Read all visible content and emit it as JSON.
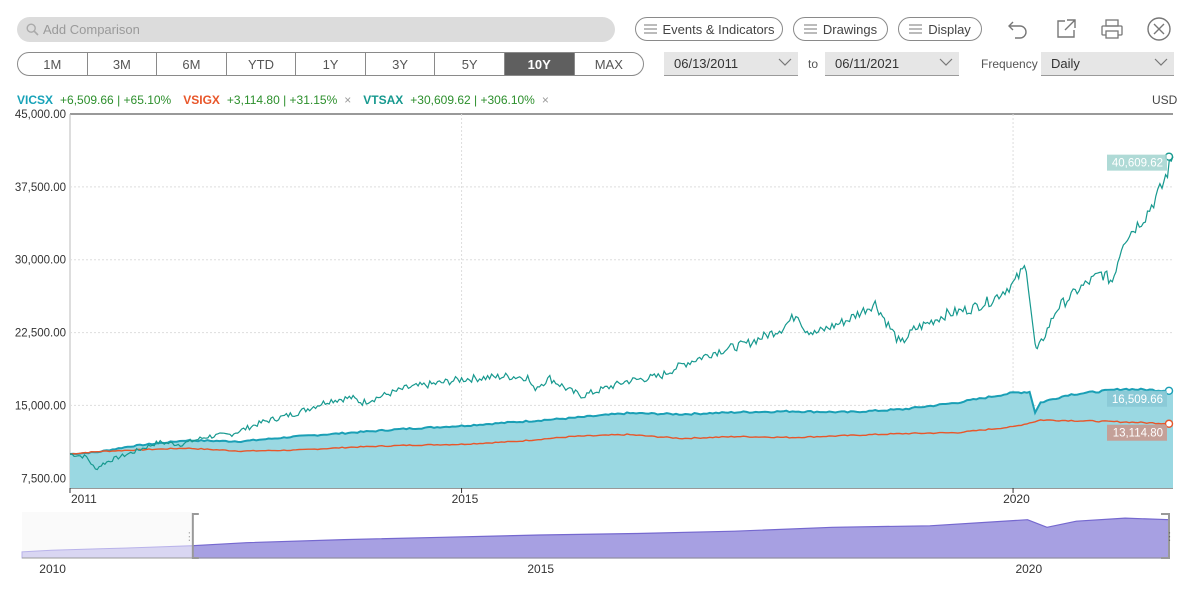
{
  "toolbar": {
    "search_placeholder": "Add Comparison",
    "events_label": "Events & Indicators",
    "drawings_label": "Drawings",
    "display_label": "Display"
  },
  "ranges": [
    "1M",
    "3M",
    "6M",
    "YTD",
    "1Y",
    "3Y",
    "5Y",
    "10Y",
    "MAX"
  ],
  "active_range": "10Y",
  "date_from": "06/13/2011",
  "date_to_label": "to",
  "date_to": "06/11/2021",
  "frequency_label": "Frequency",
  "frequency": "Daily",
  "currency": "USD",
  "legend": [
    {
      "ticker": "VICSX",
      "change": "+6,509.66 | +65.10%",
      "color": "#17a2b8"
    },
    {
      "ticker": "VSIGX",
      "change": "+3,114.80 | +31.15%",
      "color": "#e8562a",
      "removable": true
    },
    {
      "ticker": "VTSAX",
      "change": "+30,609.62 | +306.10%",
      "color": "#17998f",
      "removable": true
    }
  ],
  "chart_data": {
    "type": "line",
    "title": "",
    "ylim": [
      6500,
      45000
    ],
    "yticks": [
      "45,000.00",
      "37,500.00",
      "30,000.00",
      "22,500.00",
      "15,000.00",
      "7,500.00"
    ],
    "ytick_values": [
      45000,
      37500,
      30000,
      22500,
      15000,
      7500
    ],
    "xlim": [
      2011.45,
      2021.45
    ],
    "xticks": [
      {
        "label": "2011",
        "x": 2011.45
      },
      {
        "label": "2015",
        "x": 2015.0
      },
      {
        "label": "2020",
        "x": 2020.0
      }
    ],
    "series": [
      {
        "name": "VTSAX",
        "color": "#17998f",
        "style": "line",
        "x": [
          2011.45,
          2011.6,
          2011.68,
          2011.75,
          2011.85,
          2012.0,
          2012.25,
          2012.45,
          2012.7,
          2012.9,
          2013.2,
          2013.5,
          2013.8,
          2014.0,
          2014.1,
          2014.5,
          2014.8,
          2015.0,
          2015.4,
          2015.6,
          2015.65,
          2015.8,
          2016.0,
          2016.1,
          2016.5,
          2016.8,
          2017.0,
          2017.3,
          2017.6,
          2017.9,
          2018.05,
          2018.1,
          2018.2,
          2018.5,
          2018.75,
          2018.85,
          2018.98,
          2019.1,
          2019.4,
          2019.6,
          2019.8,
          2020.0,
          2020.12,
          2020.2,
          2020.22,
          2020.4,
          2020.6,
          2020.8,
          2020.9,
          2021.0,
          2021.2,
          2021.35,
          2021.45
        ],
        "values": [
          10000,
          9700,
          8400,
          9000,
          9500,
          10100,
          11200,
          11000,
          11800,
          12000,
          13300,
          14200,
          15500,
          15800,
          15300,
          16800,
          17300,
          17700,
          18000,
          17900,
          16700,
          17800,
          16400,
          16000,
          17500,
          18000,
          19200,
          20500,
          21400,
          22900,
          24500,
          23000,
          22400,
          23800,
          25500,
          23600,
          21300,
          22800,
          24400,
          24900,
          25800,
          27500,
          29400,
          21100,
          20600,
          25000,
          27000,
          28600,
          27800,
          32000,
          34500,
          37500,
          40609.62
        ]
      },
      {
        "name": "VICSX",
        "color": "#1a9fb5",
        "style": "area",
        "x": [
          2011.45,
          2011.7,
          2012.0,
          2012.5,
          2013.0,
          2013.5,
          2014.0,
          2014.5,
          2015.0,
          2015.5,
          2016.0,
          2016.5,
          2017.0,
          2017.5,
          2018.0,
          2018.5,
          2019.0,
          2019.5,
          2020.0,
          2020.15,
          2020.2,
          2020.25,
          2020.5,
          2021.0,
          2021.45
        ],
        "values": [
          10000,
          10200,
          10800,
          11400,
          11300,
          11800,
          12200,
          12600,
          12900,
          13300,
          13700,
          14200,
          14100,
          14300,
          14400,
          14300,
          14600,
          15300,
          16300,
          16400,
          14300,
          15300,
          16100,
          16700,
          16509.66
        ]
      },
      {
        "name": "VSIGX",
        "color": "#e8562a",
        "style": "line",
        "x": [
          2011.45,
          2011.7,
          2012.0,
          2012.5,
          2013.0,
          2013.5,
          2014.0,
          2014.5,
          2015.0,
          2015.5,
          2016.0,
          2016.5,
          2017.0,
          2017.5,
          2018.0,
          2018.5,
          2019.0,
          2019.5,
          2020.0,
          2020.15,
          2020.25,
          2020.5,
          2021.0,
          2021.45
        ],
        "values": [
          10000,
          10250,
          10400,
          10600,
          10300,
          10400,
          10700,
          10900,
          11000,
          11300,
          11800,
          12000,
          11600,
          11800,
          11700,
          11900,
          12100,
          12200,
          12800,
          13200,
          13500,
          13450,
          13300,
          13114.8
        ]
      }
    ],
    "end_labels": [
      {
        "series": "VTSAX",
        "text": "40,609.62",
        "color": "#17998f"
      },
      {
        "series": "VICSX",
        "text": "16,509.66",
        "color": "#1a9fb5"
      },
      {
        "series": "VSIGX",
        "text": "13,114.80",
        "color": "#e8562a"
      }
    ],
    "navigator": {
      "xticks": [
        {
          "label": "2010",
          "x": 2010.0
        },
        {
          "label": "2015",
          "x": 2015.0
        },
        {
          "label": "2020",
          "x": 2020.0
        }
      ],
      "xlim": [
        2009.7,
        2021.45
      ],
      "selection_start": 2011.45,
      "x": [
        2009.7,
        2010.0,
        2010.5,
        2011.0,
        2011.45,
        2012.0,
        2013.0,
        2014.0,
        2015.0,
        2016.0,
        2017.0,
        2018.0,
        2019.0,
        2020.0,
        2020.2,
        2020.5,
        2021.0,
        2021.45
      ],
      "values": [
        8,
        10,
        12,
        14,
        16,
        20,
        24,
        27,
        30,
        32,
        35,
        40,
        42,
        50,
        40,
        48,
        52,
        50
      ]
    }
  }
}
